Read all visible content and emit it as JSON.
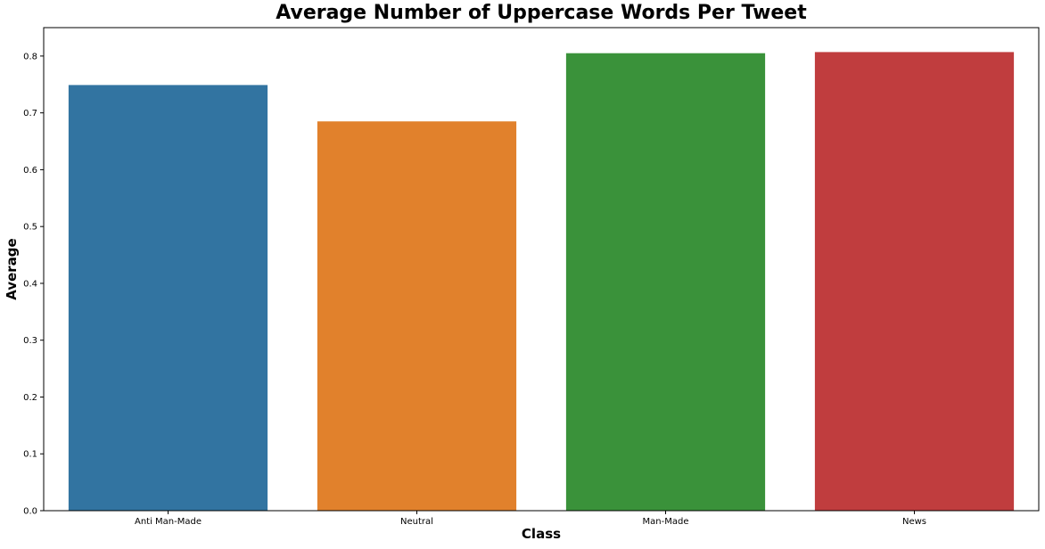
{
  "chart_data": {
    "type": "bar",
    "title": "Average Number of Uppercase Words Per Tweet",
    "xlabel": "Class",
    "ylabel": "Average",
    "categories": [
      "Anti Man-Made",
      "Neutral",
      "Man-Made",
      "News"
    ],
    "values": [
      0.749,
      0.685,
      0.805,
      0.807
    ],
    "colors": [
      "#3274a1",
      "#e1812c",
      "#3a923a",
      "#c03d3e"
    ],
    "ylim": [
      0,
      0.85
    ],
    "yticks": [
      "0.0",
      "0.1",
      "0.2",
      "0.3",
      "0.4",
      "0.5",
      "0.6",
      "0.7",
      "0.8"
    ],
    "grid": false,
    "legend": "none"
  }
}
